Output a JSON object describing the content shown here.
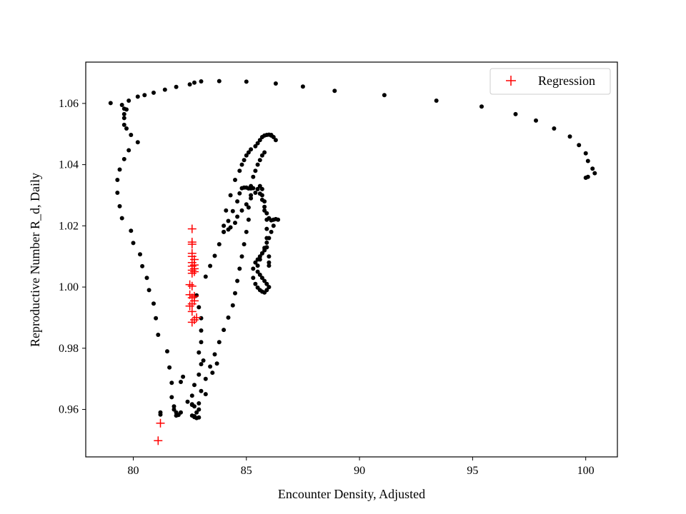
{
  "chart_data": {
    "type": "scatter",
    "title": "",
    "xlabel": "Encounter Density, Adjusted",
    "ylabel": "Reproductive Number R_d, Daily",
    "xlim": [
      77.9,
      101.4
    ],
    "ylim": [
      0.9445,
      1.0735
    ],
    "xticks": [
      80,
      85,
      90,
      95,
      100
    ],
    "xtick_labels": [
      "80",
      "85",
      "90",
      "95",
      "100"
    ],
    "yticks": [
      0.96,
      0.98,
      1.0,
      1.02,
      1.04,
      1.06
    ],
    "ytick_labels": [
      "0.96",
      "0.98",
      "1.00",
      "1.02",
      "1.04",
      "1.06"
    ],
    "grid": false,
    "legend_position": "top-right",
    "series": [
      {
        "marker": "circle",
        "color": "#000000",
        "x": [
          79.0,
          79.5,
          79.8,
          80.2,
          80.5,
          80.9,
          81.4,
          81.9,
          82.5,
          82.7,
          83.0,
          83.8,
          85.0,
          86.3,
          87.5,
          88.9,
          91.1,
          93.4,
          95.4,
          96.9,
          97.8,
          98.6,
          99.3,
          99.7,
          100.0,
          100.1,
          100.3,
          100.4,
          100.1,
          100.0,
          79.6,
          79.6,
          79.6,
          79.6,
          79.7,
          79.7,
          79.9,
          80.2,
          79.8,
          79.6,
          79.4,
          79.3,
          79.3,
          79.4,
          79.5,
          79.9,
          80.0,
          80.3,
          80.4,
          80.6,
          80.7,
          80.9,
          81.0,
          81.1,
          81.5,
          81.6,
          81.7,
          81.7,
          81.8,
          81.9,
          81.9,
          82.0,
          82.1,
          81.8,
          81.2,
          81.2,
          82.1,
          82.2,
          82.4,
          82.6,
          82.7,
          82.8,
          82.9,
          82.8,
          82.7,
          82.6,
          82.6,
          82.7,
          82.9,
          83.0,
          83.1,
          82.9,
          83.0,
          83.0,
          83.0,
          82.9,
          82.8,
          83.2,
          83.4,
          83.6,
          83.8,
          84.0,
          84.2,
          84.4,
          84.6,
          84.7,
          84.8,
          84.9,
          85.0,
          85.1,
          85.2,
          85.3,
          85.5,
          85.6,
          85.7,
          85.8,
          85.9,
          86.0,
          86.1,
          86.2,
          86.3,
          86.4,
          86.2,
          86.1,
          86.0,
          85.9,
          85.8,
          85.7,
          85.6,
          85.5,
          85.5,
          85.6,
          85.7,
          85.8,
          85.9,
          86.0,
          85.9,
          85.8,
          85.7,
          85.6,
          85.5,
          85.4,
          85.3,
          85.3,
          85.4,
          85.5,
          85.6,
          85.7,
          85.8,
          85.9,
          86.0,
          86.0,
          86.0,
          85.9,
          85.9,
          85.9,
          85.9,
          85.8,
          85.8,
          85.7,
          85.7,
          85.6,
          85.5,
          85.4,
          85.2,
          85.0,
          84.8,
          84.6,
          84.5,
          84.3,
          84.2,
          84.0,
          84.0,
          84.1,
          84.3,
          84.5,
          84.7,
          84.8,
          84.9,
          85.0,
          85.1,
          85.2,
          85.4,
          85.5,
          85.6,
          85.7,
          85.8,
          85.9,
          86.0,
          86.1,
          86.1,
          86.2,
          86.3,
          83.7,
          83.5,
          83.2,
          82.9,
          82.7,
          82.6,
          82.9,
          83.0,
          83.2,
          83.4,
          83.6,
          83.8,
          84.0,
          84.2,
          84.4,
          84.5,
          84.6,
          84.7,
          84.8,
          84.9,
          85.0,
          85.1,
          85.1,
          85.2,
          85.2,
          85.3,
          85.4,
          85.5,
          85.6,
          85.7,
          85.8
        ],
        "y": [
          1.0601,
          1.0595,
          1.0609,
          1.0622,
          1.0627,
          1.0635,
          1.0645,
          1.0654,
          1.0662,
          1.0668,
          1.0672,
          1.0673,
          1.0671,
          1.0665,
          1.0655,
          1.0641,
          1.0627,
          1.0609,
          1.059,
          1.0565,
          1.0544,
          1.0518,
          1.0492,
          1.0464,
          1.0437,
          1.0412,
          1.0387,
          1.0372,
          1.036,
          1.0357,
          1.0583,
          1.0565,
          1.0552,
          1.053,
          1.0518,
          1.058,
          1.0497,
          1.0473,
          1.0447,
          1.0418,
          1.0384,
          1.035,
          1.0308,
          1.0264,
          1.0225,
          1.0184,
          1.0144,
          1.0107,
          1.0068,
          1.003,
          0.999,
          0.9946,
          0.9898,
          0.9844,
          0.979,
          0.9737,
          0.9687,
          0.964,
          0.961,
          0.959,
          0.958,
          0.9582,
          0.959,
          0.96,
          0.959,
          0.9583,
          0.969,
          0.9707,
          0.9625,
          0.9615,
          0.961,
          0.959,
          0.9574,
          0.9572,
          0.9578,
          0.9617,
          0.9645,
          0.968,
          0.9714,
          0.9748,
          0.976,
          0.9786,
          0.982,
          0.9858,
          0.9898,
          0.9934,
          0.9973,
          1.0034,
          1.0069,
          1.0102,
          1.014,
          1.018,
          1.0216,
          1.0248,
          1.028,
          1.0306,
          1.0323,
          1.0325,
          1.0325,
          1.0322,
          1.0322,
          1.0323,
          1.032,
          1.0305,
          1.0285,
          1.0262,
          1.0241,
          1.0225,
          1.0218,
          1.022,
          1.0222,
          1.022,
          1.02,
          1.018,
          1.016,
          1.0145,
          1.0128,
          1.011,
          1.009,
          1.007,
          1.005,
          1.004,
          1.003,
          1.002,
          1.001,
          1.0,
          0.999,
          0.9982,
          0.9985,
          0.999,
          0.9998,
          1.001,
          1.003,
          1.006,
          1.008,
          1.009,
          1.01,
          1.011,
          1.012,
          1.013,
          1.007,
          1.008,
          1.01,
          1.013,
          1.016,
          1.019,
          1.022,
          1.025,
          1.028,
          1.03,
          1.032,
          1.033,
          1.032,
          1.0308,
          1.029,
          1.027,
          1.025,
          1.023,
          1.021,
          1.0195,
          1.0188,
          1.018,
          1.02,
          1.025,
          1.03,
          1.035,
          1.038,
          1.04,
          1.0415,
          1.043,
          1.044,
          1.045,
          1.046,
          1.047,
          1.048,
          1.049,
          1.0495,
          1.0497,
          1.0498,
          1.0497,
          1.0495,
          1.049,
          1.048,
          0.975,
          0.972,
          0.965,
          0.96,
          0.9575,
          0.958,
          0.962,
          0.966,
          0.97,
          0.974,
          0.978,
          0.982,
          0.986,
          0.99,
          0.994,
          0.998,
          1.002,
          1.006,
          1.01,
          1.014,
          1.018,
          1.022,
          1.026,
          1.03,
          1.033,
          1.036,
          1.038,
          1.04,
          1.0415,
          1.043,
          1.044
        ]
      },
      {
        "name": "Regression",
        "marker": "plus",
        "color": "#ff0000",
        "x": [
          82.6,
          82.6,
          82.6,
          82.6,
          82.6,
          82.7,
          82.6,
          82.7,
          82.6,
          82.7,
          82.6,
          82.7,
          82.6,
          82.5,
          82.6,
          82.5,
          82.7,
          82.6,
          82.7,
          82.6,
          82.5,
          82.6,
          82.8,
          82.7,
          82.6,
          81.2,
          81.1
        ],
        "y": [
          1.019,
          1.0147,
          1.014,
          1.011,
          1.01,
          1.009,
          1.008,
          1.0072,
          1.0068,
          1.006,
          1.0055,
          1.005,
          1.0045,
          1.0008,
          1.0003,
          0.9975,
          0.997,
          0.9965,
          0.9955,
          0.9945,
          0.9938,
          0.992,
          0.99,
          0.9893,
          0.9885,
          0.9555,
          0.9498
        ]
      }
    ]
  }
}
